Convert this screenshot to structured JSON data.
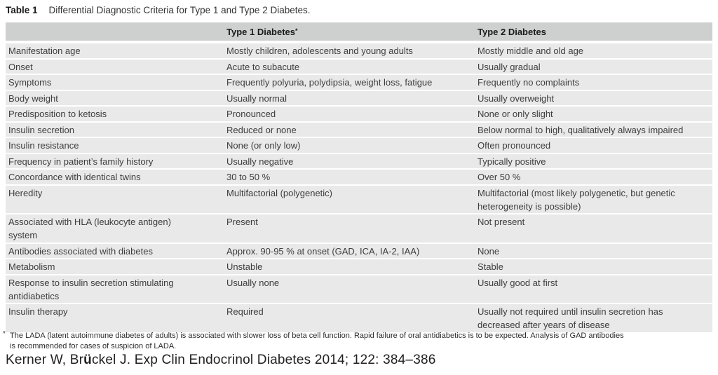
{
  "colors": {
    "header_bg": "#cdd0cf",
    "row_bg": "#e8e9e8",
    "page_bg": "#ffffff"
  },
  "title": {
    "label": "Table 1",
    "text": "Differential Diagnostic Criteria for Type 1 and Type 2 Diabetes."
  },
  "table": {
    "header": {
      "criterion": "",
      "type1": "Type 1 Diabetes",
      "type1_note_marker": "*",
      "type2": "Type 2 Diabetes"
    },
    "rows": [
      {
        "criterion": "Manifestation age",
        "type1": "Mostly children, adolescents and young adults",
        "type2": "Mostly middle and old age"
      },
      {
        "criterion": "Onset",
        "type1": "Acute to subacute",
        "type2": "Usually gradual"
      },
      {
        "criterion": "Symptoms",
        "type1": "Frequently polyuria, polydipsia, weight loss, fatigue",
        "type2": "Frequently no complaints"
      },
      {
        "criterion": "Body weight",
        "type1": "Usually normal",
        "type2": "Usually overweight"
      },
      {
        "criterion": "Predisposition to ketosis",
        "type1": "Pronounced",
        "type2": "None or only slight"
      },
      {
        "criterion": "Insulin secretion",
        "type1": "Reduced or none",
        "type2": "Below normal to high, qualitatively always impaired"
      },
      {
        "criterion": "Insulin resistance",
        "type1": "None (or only low)",
        "type2": "Often pronounced"
      },
      {
        "criterion": "Frequency in patient’s family history",
        "type1": "Usually negative",
        "type2": "Typically positive"
      },
      {
        "criterion": "Concordance with identical twins",
        "type1": "30 to 50 %",
        "type2": "Over 50 %"
      },
      {
        "criterion": "Heredity",
        "type1": "Multifactorial (polygenetic)",
        "type2": "Multifactorial (most likely polygenetic, but genetic\nheterogeneity is possible)"
      },
      {
        "criterion": "Associated with HLA (leukocyte antigen)\nsystem",
        "type1": "Present",
        "type2": "Not present"
      },
      {
        "criterion": "Antibodies associated with diabetes",
        "type1": "Approx. 90-95 % at onset (GAD, ICA, IA-2, IAA)",
        "type2": "None"
      },
      {
        "criterion": "Metabolism",
        "type1": "Unstable",
        "type2": "Stable"
      },
      {
        "criterion": "Response to insulin secretion stimulating\nantidiabetics",
        "type1": "Usually none",
        "type2": "Usually good at first"
      },
      {
        "criterion": "Insulin therapy",
        "type1": "Required",
        "type2": "Usually not required until insulin secretion has\ndecreased after years of disease"
      }
    ]
  },
  "footnote": {
    "marker": "*",
    "line1": "The LADA (latent autoimmune diabetes of adults) is associated with slower loss of beta cell function. Rapid failure of oral antidiabetics is to be expected. Analysis of GAD antibodies",
    "line2": "is recommended for cases of suspicion of LADA."
  },
  "citation": {
    "part1": "Kerner W, Br",
    "umlaut": "ü",
    "part2": "ckel J. Exp Clin Endocrinol Diabetes 2014; 122: 384–386"
  }
}
